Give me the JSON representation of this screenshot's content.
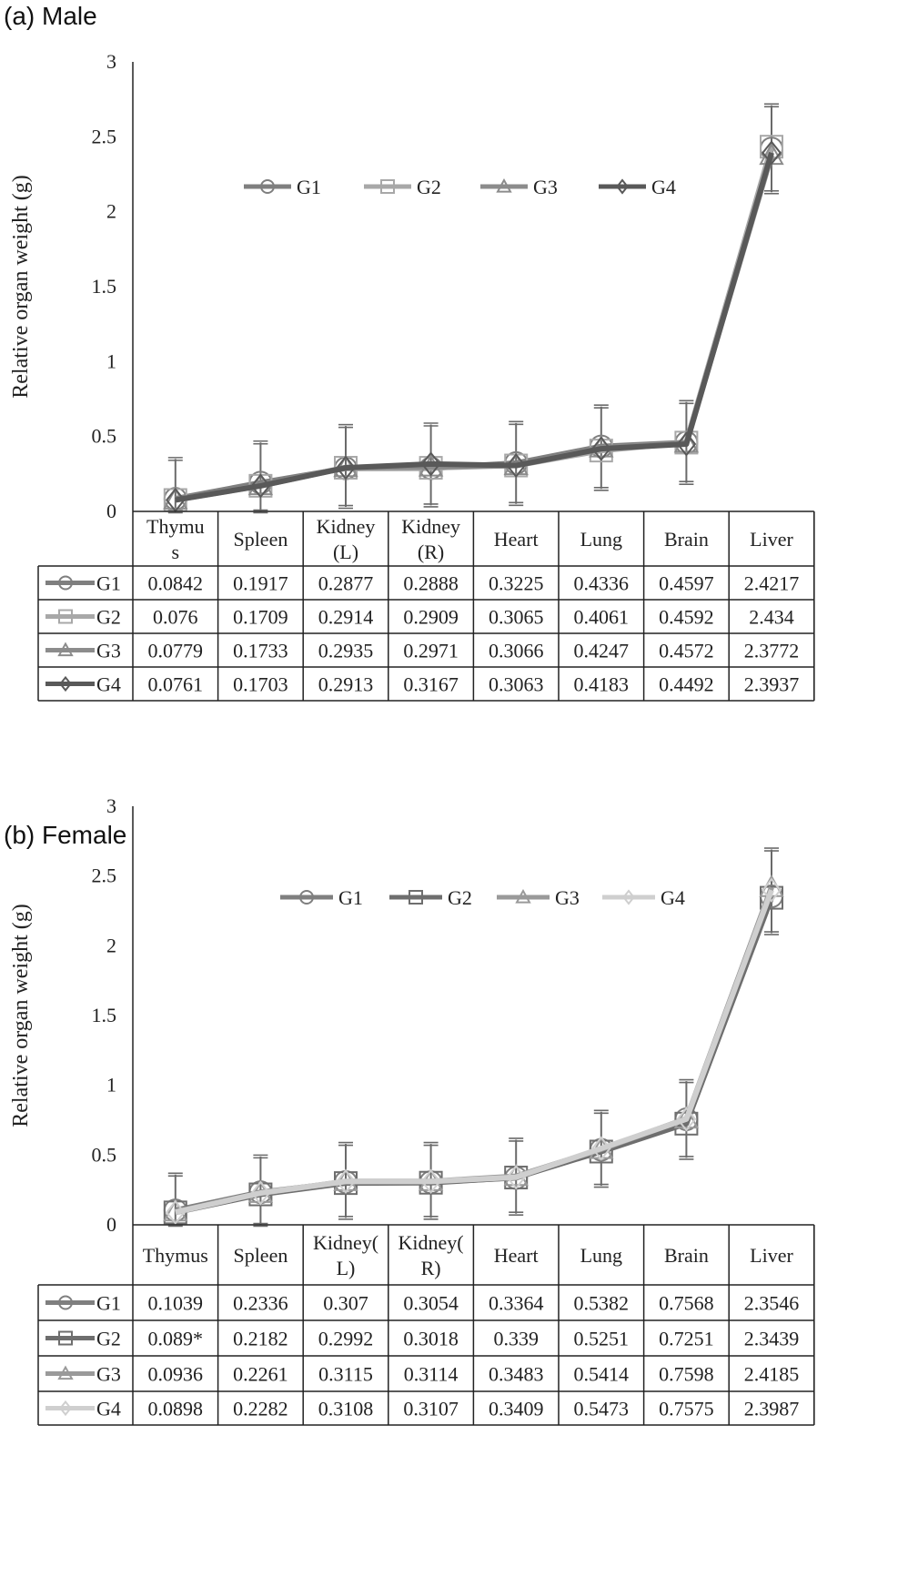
{
  "figure": {
    "panels": [
      {
        "title": "(a)  Male"
      },
      {
        "title": "(b)  Female"
      }
    ]
  },
  "chart_data": [
    {
      "type": "line",
      "title": "(a) Male",
      "ylabel": "Relative organ weight (g)",
      "xlabel": "",
      "ylim": [
        0,
        3
      ],
      "yticks": [
        "0",
        "0.5",
        "1",
        "1.5",
        "2",
        "2.5",
        "3"
      ],
      "categories": [
        "Thymus",
        "Spleen",
        "Kidney (L)",
        "Kidney (R)",
        "Heart",
        "Lung",
        "Brain",
        "Liver"
      ],
      "category_labels": [
        [
          "Thymu",
          "s"
        ],
        [
          "Spleen"
        ],
        [
          "Kidney",
          "(L)"
        ],
        [
          "Kidney",
          "(R)"
        ],
        [
          "Heart"
        ],
        [
          "Lung"
        ],
        [
          "Brain"
        ],
        [
          "Liver"
        ]
      ],
      "legend_position": "top-center",
      "grid": false,
      "series": [
        {
          "name": "G1",
          "marker": "circle",
          "color": "#7f7f7f",
          "labels": [
            "0.0842",
            "0.1917",
            "0.2877",
            "0.2888",
            "0.3225",
            "0.4336",
            "0.4597",
            "2.4217"
          ],
          "values": [
            0.0842,
            0.1917,
            0.2877,
            0.2888,
            0.3225,
            0.4336,
            0.4597,
            2.4217
          ]
        },
        {
          "name": "G2",
          "marker": "square",
          "color": "#a8a8a8",
          "labels": [
            "0.076",
            "0.1709",
            "0.2914",
            "0.2909",
            "0.3065",
            "0.4061",
            "0.4592",
            "2.434"
          ],
          "values": [
            0.076,
            0.1709,
            0.2914,
            0.2909,
            0.3065,
            0.4061,
            0.4592,
            2.434
          ]
        },
        {
          "name": "G3",
          "marker": "triangle",
          "color": "#8c8c8c",
          "labels": [
            "0.0779",
            "0.1733",
            "0.2935",
            "0.2971",
            "0.3066",
            "0.4247",
            "0.4572",
            "2.3772"
          ],
          "values": [
            0.0779,
            0.1733,
            0.2935,
            0.2971,
            0.3066,
            0.4247,
            0.4572,
            2.3772
          ]
        },
        {
          "name": "G4",
          "marker": "diamond",
          "color": "#595959",
          "labels": [
            "0.0761",
            "0.1703",
            "0.2913",
            "0.3167",
            "0.3063",
            "0.4183",
            "0.4492",
            "2.3937"
          ],
          "values": [
            0.0761,
            0.1703,
            0.2913,
            0.3167,
            0.3063,
            0.4183,
            0.4492,
            2.3937
          ]
        }
      ],
      "error_bars": {
        "upper": [
          0.35,
          0.46,
          0.57,
          0.58,
          0.59,
          0.7,
          0.73,
          2.71
        ],
        "lower": [
          0.0,
          0.0,
          0.03,
          0.04,
          0.05,
          0.15,
          0.19,
          2.13
        ]
      }
    },
    {
      "type": "line",
      "title": "(b) Female",
      "ylabel": "Relative organ weight (g)",
      "xlabel": "",
      "ylim": [
        0,
        3
      ],
      "yticks": [
        "0",
        "0.5",
        "1",
        "1.5",
        "2",
        "2.5",
        "3"
      ],
      "categories": [
        "Thymus",
        "Spleen",
        "Kidney(L)",
        "Kidney(R)",
        "Heart",
        "Lung",
        "Brain",
        "Liver"
      ],
      "category_labels": [
        [
          "Thymus"
        ],
        [
          "Spleen"
        ],
        [
          "Kidney(",
          "L)"
        ],
        [
          "Kidney(",
          "R)"
        ],
        [
          "Heart"
        ],
        [
          "Lung"
        ],
        [
          "Brain"
        ],
        [
          "Liver"
        ]
      ],
      "legend_position": "top-right",
      "grid": false,
      "series": [
        {
          "name": "G1",
          "marker": "circle",
          "color": "#7f7f7f",
          "labels": [
            "0.1039",
            "0.2336",
            "0.307",
            "0.3054",
            "0.3364",
            "0.5382",
            "0.7568",
            "2.3546"
          ],
          "values": [
            0.1039,
            0.2336,
            0.307,
            0.3054,
            0.3364,
            0.5382,
            0.7568,
            2.3546
          ]
        },
        {
          "name": "G2",
          "marker": "square",
          "color": "#6e6e6e",
          "labels": [
            "0.089*",
            "0.2182",
            "0.2992",
            "0.3018",
            "0.339",
            "0.5251",
            "0.7251",
            "2.3439"
          ],
          "values": [
            0.089,
            0.2182,
            0.2992,
            0.3018,
            0.339,
            0.5251,
            0.7251,
            2.3439
          ]
        },
        {
          "name": "G3",
          "marker": "triangle",
          "color": "#9a9a9a",
          "labels": [
            "0.0936",
            "0.2261",
            "0.3115",
            "0.3114",
            "0.3483",
            "0.5414",
            "0.7598",
            "2.4185"
          ],
          "values": [
            0.0936,
            0.2261,
            0.3115,
            0.3114,
            0.3483,
            0.5414,
            0.7598,
            2.4185
          ]
        },
        {
          "name": "G4",
          "marker": "diamond",
          "color": "#cfcfcf",
          "labels": [
            "0.0898",
            "0.2282",
            "0.3108",
            "0.3107",
            "0.3409",
            "0.5473",
            "0.7575",
            "2.3987"
          ],
          "values": [
            0.0898,
            0.2282,
            0.3108,
            0.3107,
            0.3409,
            0.5473,
            0.7575,
            2.3987
          ]
        }
      ],
      "error_bars": {
        "upper": [
          0.36,
          0.49,
          0.58,
          0.58,
          0.61,
          0.81,
          1.03,
          2.69
        ],
        "lower": [
          0.0,
          0.0,
          0.05,
          0.05,
          0.08,
          0.28,
          0.48,
          2.09
        ]
      }
    }
  ]
}
